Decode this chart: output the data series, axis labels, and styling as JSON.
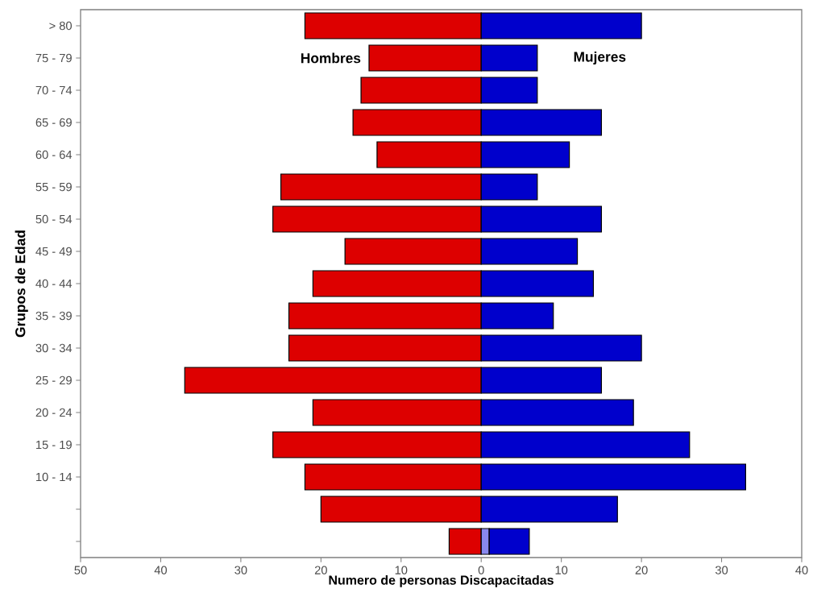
{
  "chart_data": {
    "type": "bar",
    "orientation": "horizontal",
    "stacked": true,
    "xlabel": "Numero de personas  Discapacitadas",
    "ylabel": "Grupos de Edad",
    "categories": [
      "> 80",
      "75 - 79",
      "70 - 74",
      "65 - 69",
      "60 - 64",
      "55 - 59",
      "50 - 54",
      "45 - 49",
      "40 - 44",
      "35 - 39",
      "30 - 34",
      "25 - 29",
      "20 - 24",
      "15 - 19",
      "10 - 14",
      null,
      null
    ],
    "series": [
      {
        "name": "Hombres",
        "color": "#dd0000",
        "values": [
          -22,
          -14,
          -15,
          -16,
          -13,
          -25,
          -26,
          -17,
          -21,
          -24,
          -24,
          -37,
          -21,
          -26,
          -22,
          -20,
          -4
        ]
      },
      {
        "color": "#8888ee",
        "values": [
          null,
          null,
          null,
          null,
          null,
          null,
          null,
          null,
          null,
          null,
          null,
          null,
          null,
          null,
          null,
          null,
          1
        ]
      },
      {
        "name": "Mujeres",
        "color": "#0000cc",
        "values": [
          20,
          7,
          7,
          15,
          11,
          7,
          15,
          12,
          14,
          9,
          20,
          15,
          19,
          26,
          33,
          17,
          5
        ]
      }
    ],
    "xlim": [
      -50,
      40
    ],
    "xticks": [
      {
        "value": -50,
        "label": "50"
      },
      {
        "value": -40,
        "label": "40"
      },
      {
        "value": -30,
        "label": "30"
      },
      {
        "value": -20,
        "label": "20"
      },
      {
        "value": -10,
        "label": "10"
      },
      0,
      10,
      20,
      30,
      40
    ]
  }
}
